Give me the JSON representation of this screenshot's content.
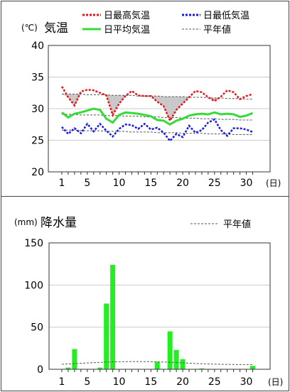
{
  "chart_data": [
    {
      "type": "line",
      "title": "気温",
      "unit": "(℃)",
      "xunit": "(日)",
      "ylim": [
        20,
        40
      ],
      "yticks": [
        20,
        25,
        30,
        35,
        40
      ],
      "xticks": [
        1,
        5,
        10,
        15,
        20,
        25,
        30
      ],
      "grid": true,
      "legend_position": "top-right",
      "x": [
        1,
        2,
        3,
        4,
        5,
        6,
        7,
        8,
        9,
        10,
        11,
        12,
        13,
        14,
        15,
        16,
        17,
        18,
        19,
        20,
        21,
        22,
        23,
        24,
        25,
        26,
        27,
        28,
        29,
        30,
        31
      ],
      "series": [
        {
          "name": "日最高気温",
          "style": "dotted",
          "color": "#e8141a",
          "values": [
            33.5,
            31.8,
            30.5,
            32.7,
            33.0,
            32.9,
            32.5,
            32.1,
            29.0,
            30.8,
            32.0,
            32.8,
            32.1,
            32.0,
            32.0,
            31.1,
            30.4,
            28.1,
            29.8,
            30.8,
            31.8,
            32.8,
            32.6,
            31.8,
            31.2,
            31.9,
            32.9,
            32.6,
            31.5,
            32.0,
            32.3
          ]
        },
        {
          "name": "日平均気温",
          "style": "solid",
          "color": "#33dd33",
          "values": [
            29.4,
            28.6,
            29.2,
            29.4,
            29.7,
            30.0,
            29.8,
            28.4,
            27.8,
            29.0,
            29.4,
            29.3,
            29.2,
            29.0,
            28.8,
            28.2,
            28.1,
            27.5,
            28.1,
            28.4,
            28.9,
            29.1,
            29.2,
            29.1,
            29.4,
            29.1,
            29.2,
            29.1,
            28.7,
            28.9,
            29.3
          ]
        },
        {
          "name": "日最低気温",
          "style": "dotted",
          "color": "#1a1ae6",
          "values": [
            27.1,
            26.0,
            26.9,
            26.1,
            27.6,
            26.4,
            27.6,
            26.5,
            25.6,
            26.8,
            27.5,
            27.4,
            26.8,
            27.6,
            26.7,
            27.0,
            26.2,
            24.9,
            26.0,
            25.5,
            27.3,
            26.2,
            26.6,
            27.8,
            28.3,
            26.6,
            25.7,
            26.9,
            26.9,
            26.7,
            26.3
          ]
        },
        {
          "name": "平年値",
          "style": "dashed",
          "color": "#555555",
          "group": "normals",
          "values": [
            32.3,
            32.3,
            32.3,
            32.3,
            32.2,
            32.2,
            32.2,
            32.2,
            32.1,
            32.1,
            32.1,
            32.1,
            32.0,
            32.0,
            32.0,
            32.0,
            31.9,
            31.9,
            31.9,
            31.9,
            31.8,
            31.8,
            31.8,
            31.7,
            31.7,
            31.7,
            31.6,
            31.6,
            31.6,
            31.5,
            31.5
          ]
        },
        {
          "name": "平年値",
          "style": "dashed",
          "color": "#555555",
          "group": "normals",
          "values": [
            29.1,
            29.1,
            29.1,
            29.0,
            29.0,
            29.0,
            29.0,
            28.9,
            28.9,
            28.9,
            28.8,
            28.8,
            28.8,
            28.7,
            28.7,
            28.7,
            28.6,
            28.6,
            28.6,
            28.5,
            28.5,
            28.5,
            28.4,
            28.4,
            28.4,
            28.3,
            28.3,
            28.3,
            28.2,
            28.2,
            28.2
          ]
        },
        {
          "name": "平年値",
          "style": "dashed",
          "color": "#555555",
          "group": "normals",
          "values": [
            26.6,
            26.6,
            26.6,
            26.5,
            26.5,
            26.5,
            26.5,
            26.4,
            26.4,
            26.4,
            26.4,
            26.3,
            26.3,
            26.3,
            26.3,
            26.2,
            26.2,
            26.2,
            26.2,
            26.1,
            26.1,
            26.1,
            26.1,
            26.0,
            26.0,
            26.0,
            26.0,
            25.9,
            25.9,
            25.9,
            25.9
          ]
        }
      ],
      "legend": [
        {
          "label": "日最高気温",
          "color": "#e8141a",
          "style": "dotted"
        },
        {
          "label": "日最低気温",
          "color": "#1a1ae6",
          "style": "dotted"
        },
        {
          "label": "日平均気温",
          "color": "#33dd33",
          "style": "solid"
        },
        {
          "label": "平年値",
          "color": "#555555",
          "style": "dashed"
        }
      ]
    },
    {
      "type": "bar",
      "title": "降水量",
      "unit": "(mm)",
      "xunit": "(日)",
      "ylim": [
        0,
        150
      ],
      "yticks": [
        0,
        50,
        100,
        150
      ],
      "xticks": [
        1,
        5,
        10,
        15,
        20,
        25,
        30
      ],
      "grid": true,
      "legend_position": "top-right",
      "x": [
        1,
        2,
        3,
        4,
        5,
        6,
        7,
        8,
        9,
        10,
        11,
        12,
        13,
        14,
        15,
        16,
        17,
        18,
        19,
        20,
        21,
        22,
        23,
        24,
        25,
        26,
        27,
        28,
        29,
        30,
        31
      ],
      "series": [
        {
          "name": "降水量",
          "color": "#22ee22",
          "values": [
            0,
            2,
            24,
            0,
            0,
            0,
            2,
            78,
            124,
            0,
            0,
            0,
            0,
            0,
            0,
            9,
            0,
            45,
            23,
            12,
            0,
            0,
            1,
            0,
            0,
            0,
            0,
            0,
            0,
            0,
            4
          ]
        },
        {
          "name": "平年値",
          "style": "dashed",
          "color": "#555555",
          "values": [
            6.0,
            6.3,
            6.7,
            7.1,
            7.5,
            7.8,
            8.2,
            8.5,
            8.7,
            9.0,
            9.1,
            9.2,
            9.2,
            9.1,
            9.0,
            8.8,
            8.6,
            8.3,
            8.0,
            7.6,
            7.2,
            6.9,
            6.6,
            6.3,
            6.1,
            5.9,
            5.8,
            5.7,
            5.6,
            5.6,
            5.5
          ]
        }
      ],
      "legend": [
        {
          "label": "平年値",
          "color": "#555555",
          "style": "dashed"
        }
      ]
    }
  ]
}
